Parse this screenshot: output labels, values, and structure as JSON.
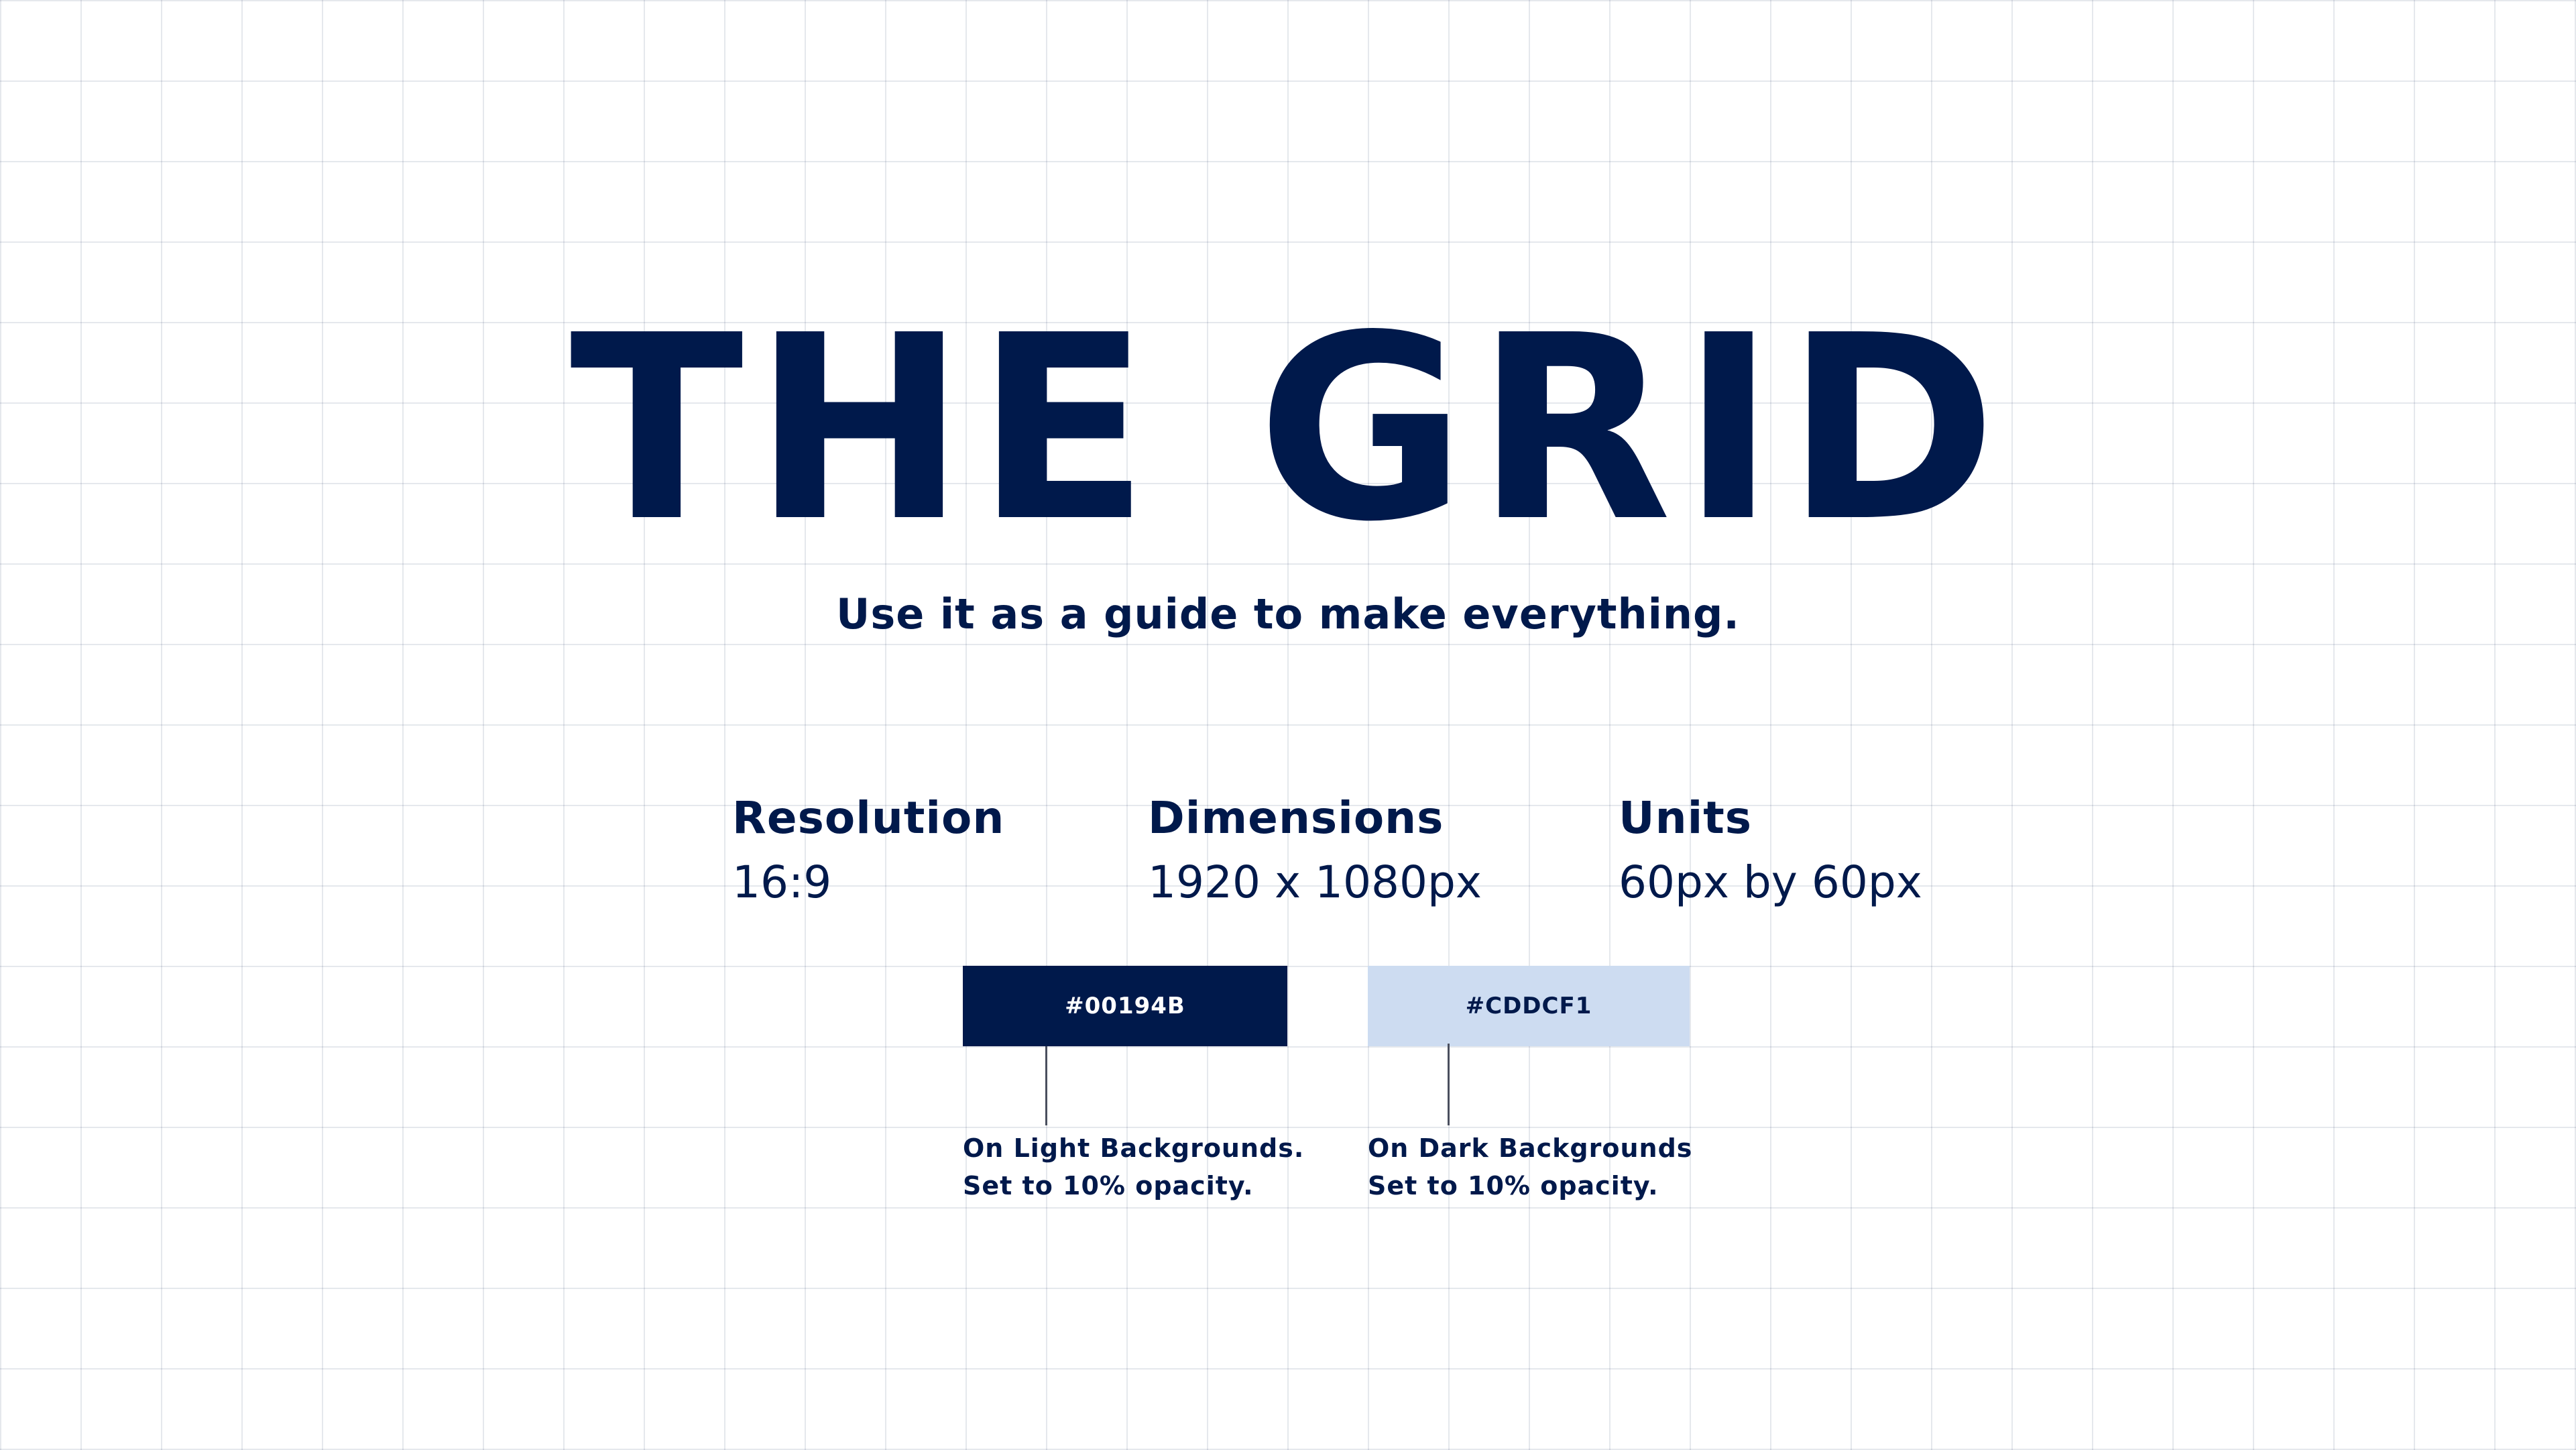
{
  "title": "THE GRID",
  "subtitle": "Use it as a guide to make everything.",
  "specs": {
    "resolution": {
      "label": "Resolution",
      "value": "16:9"
    },
    "dimensions": {
      "label": "Dimensions",
      "value": "1920 x 1080px"
    },
    "units": {
      "label": "Units",
      "value": "60px by 60px"
    }
  },
  "swatches": {
    "dark": {
      "label": "#00194B",
      "color": "#00194B"
    },
    "light": {
      "label": "#CDDCF1",
      "color": "#CDDCF1"
    }
  },
  "notes": {
    "light": {
      "line1": "On Light Backgrounds.",
      "line2": "Set to 10% opacity."
    },
    "dark": {
      "line1": "On Dark Backgrounds",
      "line2": "Set to 10% opacity."
    }
  }
}
